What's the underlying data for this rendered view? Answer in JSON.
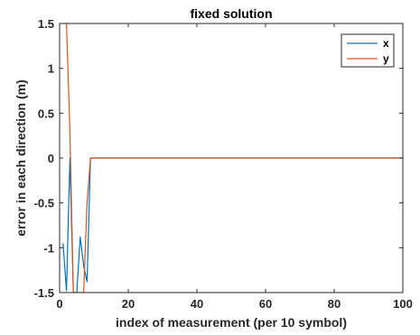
{
  "chart_data": {
    "type": "line",
    "title": "fixed solution",
    "xlabel": "index of measurement (per 10 symbol)",
    "ylabel": "error in each direction (m)",
    "xlim": [
      0,
      100
    ],
    "ylim": [
      -1.5,
      1.5
    ],
    "xticks": [
      0,
      20,
      40,
      60,
      80,
      100
    ],
    "xtick_labels": [
      "0",
      "20",
      "40",
      "60",
      "80",
      "100"
    ],
    "yticks": [
      -1.5,
      -1,
      -0.5,
      0,
      0.5,
      1,
      1.5
    ],
    "ytick_labels": [
      "-1.5",
      "-1",
      "-0.5",
      "0",
      "0.5",
      "1",
      "1.5"
    ],
    "grid": false,
    "legend_position": "top-right",
    "series": [
      {
        "name": "x",
        "color": "#0072BD",
        "x": [
          1,
          2,
          3,
          4,
          5,
          6,
          7,
          8,
          9,
          10,
          100
        ],
        "y": [
          -0.95,
          -1.48,
          0,
          -1.5,
          -1.5,
          -0.88,
          -1.2,
          -1.38,
          0,
          0,
          0
        ]
      },
      {
        "name": "y",
        "color": "#D95319",
        "x": [
          1,
          2,
          3,
          4,
          5,
          6,
          7,
          8,
          9,
          10,
          100
        ],
        "y": [
          1.5,
          1.5,
          0.3,
          -1.5,
          -1.5,
          -1.5,
          -1.5,
          -0.5,
          0,
          0,
          0
        ]
      }
    ]
  }
}
